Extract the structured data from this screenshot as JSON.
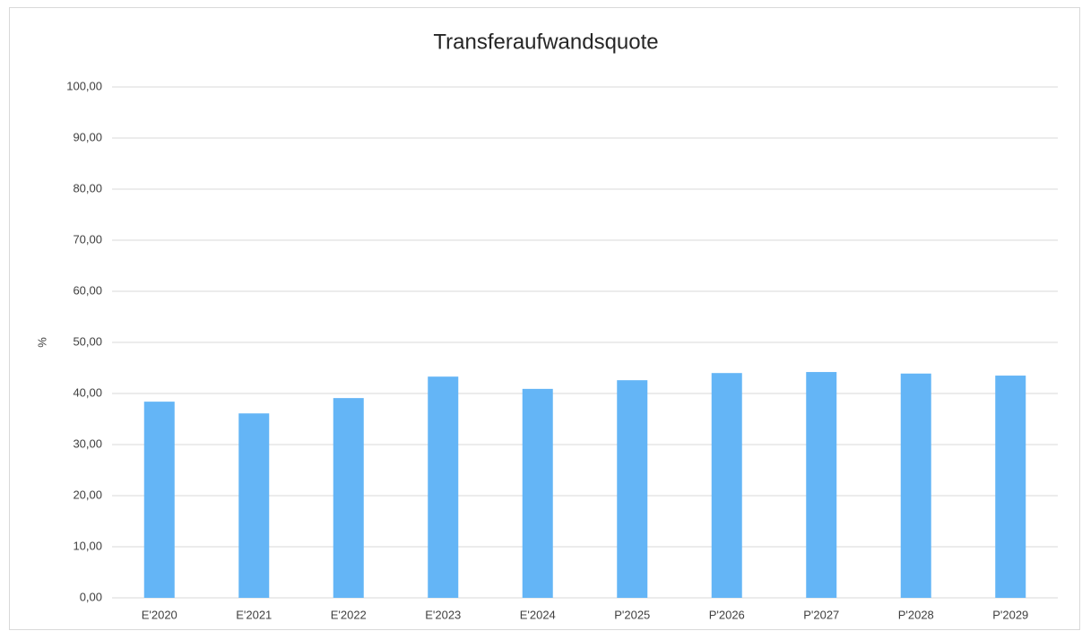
{
  "chart_data": {
    "type": "bar",
    "title": "Transferaufwandsquote",
    "y_label": "%",
    "categories": [
      "E'2020",
      "E'2021",
      "E'2022",
      "E'2023",
      "E'2024",
      "P'2025",
      "P'2026",
      "P'2027",
      "P'2028",
      "P'2029"
    ],
    "values": [
      38.4,
      36.1,
      39.1,
      43.3,
      40.9,
      42.6,
      44.0,
      44.2,
      43.9,
      43.5
    ],
    "color": "#64b5f6",
    "ylim": [
      0,
      100
    ],
    "yticks": [
      {
        "value": 0,
        "label": "0,00"
      },
      {
        "value": 10,
        "label": "10,00"
      },
      {
        "value": 20,
        "label": "20,00"
      },
      {
        "value": 30,
        "label": "30,00"
      },
      {
        "value": 40,
        "label": "40,00"
      },
      {
        "value": 50,
        "label": "50,00"
      },
      {
        "value": 60,
        "label": "60,00"
      },
      {
        "value": 70,
        "label": "70,00"
      },
      {
        "value": 80,
        "label": "80,00"
      },
      {
        "value": 90,
        "label": "90,00"
      },
      {
        "value": 100,
        "label": "100,00"
      }
    ],
    "grid": true
  }
}
